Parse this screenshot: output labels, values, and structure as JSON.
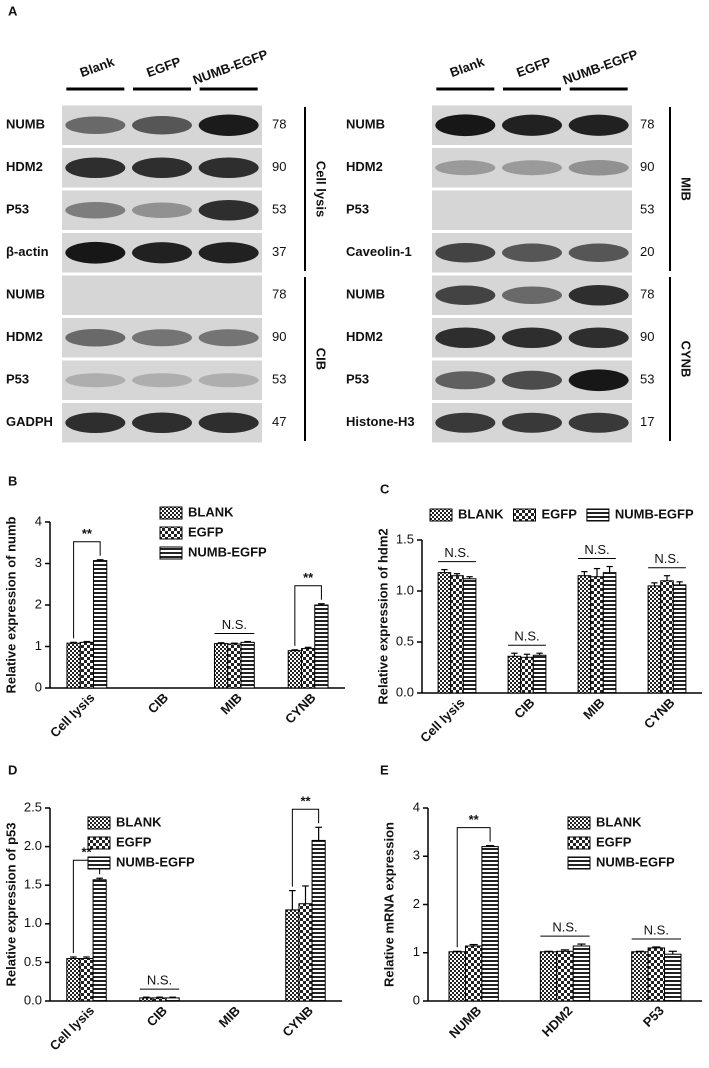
{
  "panel_a": {
    "label": "A",
    "lanes": [
      "Blank",
      "EGFP",
      "NUMB-EGFP"
    ],
    "blots": [
      {
        "groups": [
          {
            "name": "Cell lysis",
            "rows": [
              {
                "protein": "NUMB",
                "kda": 78
              },
              {
                "protein": "HDM2",
                "kda": 90
              },
              {
                "protein": "P53",
                "kda": 53
              },
              {
                "protein": "β-actin",
                "kda": 37
              }
            ]
          },
          {
            "name": "CIB",
            "rows": [
              {
                "protein": "NUMB",
                "kda": 78
              },
              {
                "protein": "HDM2",
                "kda": 90
              },
              {
                "protein": "P53",
                "kda": 53
              },
              {
                "protein": "GADPH",
                "kda": 47
              }
            ]
          }
        ]
      },
      {
        "groups": [
          {
            "name": "MIB",
            "rows": [
              {
                "protein": "NUMB",
                "kda": 78
              },
              {
                "protein": "HDM2",
                "kda": 90
              },
              {
                "protein": "P53",
                "kda": 53
              },
              {
                "protein": "Caveolin-1",
                "kda": 20
              }
            ]
          },
          {
            "name": "CYNB",
            "rows": [
              {
                "protein": "NUMB",
                "kda": 78
              },
              {
                "protein": "HDM2",
                "kda": 90
              },
              {
                "protein": "P53",
                "kda": 53
              },
              {
                "protein": "Histone-H3",
                "kda": 17
              }
            ]
          }
        ]
      }
    ]
  },
  "chart_data": [
    {
      "type": "bar",
      "label": "B",
      "y_label": "Relative expression of numb",
      "categories": [
        "Cell lysis",
        "CIB",
        "MIB",
        "CYNB"
      ],
      "ylim": [
        0,
        4
      ],
      "yticks": [
        0,
        1,
        2,
        3,
        4
      ],
      "legend": "top-right",
      "series": [
        {
          "name": "BLANK",
          "color": "#222222",
          "values": [
            1.08,
            null,
            1.07,
            0.9
          ],
          "errors": [
            0.02,
            null,
            0.02,
            0.02
          ]
        },
        {
          "name": "EGFP",
          "color": "#222222",
          "values": [
            1.1,
            null,
            1.06,
            0.95
          ],
          "errors": [
            0.02,
            null,
            0.02,
            0.03
          ]
        },
        {
          "name": "NUMB-EGFP",
          "color": "#222222",
          "values": [
            3.07,
            null,
            1.1,
            2.0
          ],
          "errors": [
            0.02,
            null,
            0.02,
            0.03
          ]
        }
      ],
      "annotations": [
        {
          "text": "**",
          "category": "Cell lysis",
          "style": "bracket"
        },
        {
          "text": "N.S.",
          "category": "MIB",
          "style": "line"
        },
        {
          "text": "**",
          "category": "CYNB",
          "style": "bracket"
        }
      ]
    },
    {
      "type": "bar",
      "label": "C",
      "y_label": "Relative expression of hdm2",
      "categories": [
        "Cell lysis",
        "CIB",
        "MIB",
        "CYNB"
      ],
      "ylim": [
        0,
        1.5
      ],
      "yticks": [
        {
          "value": 0,
          "label": "0.0"
        },
        {
          "value": 0.5,
          "label": "0.5"
        },
        {
          "value": 1,
          "label": "1.0"
        },
        {
          "value": 1.5,
          "label": "1.5"
        }
      ],
      "legend": "top",
      "series": [
        {
          "name": "BLANK",
          "color": "#222222",
          "values": [
            1.18,
            0.36,
            1.15,
            1.05
          ],
          "errors": [
            0.03,
            0.03,
            0.04,
            0.03
          ]
        },
        {
          "name": "EGFP",
          "color": "#222222",
          "values": [
            1.15,
            0.35,
            1.14,
            1.1
          ],
          "errors": [
            0.02,
            0.03,
            0.08,
            0.05
          ]
        },
        {
          "name": "NUMB-EGFP",
          "color": "#222222",
          "values": [
            1.12,
            0.37,
            1.18,
            1.06
          ],
          "errors": [
            0.02,
            0.02,
            0.06,
            0.03
          ]
        }
      ],
      "annotations": [
        {
          "text": "N.S.",
          "category": "Cell lysis",
          "style": "line"
        },
        {
          "text": "N.S.",
          "category": "CIB",
          "style": "line"
        },
        {
          "text": "N.S.",
          "category": "MIB",
          "style": "line"
        },
        {
          "text": "N.S.",
          "category": "CYNB",
          "style": "line"
        }
      ]
    },
    {
      "type": "bar",
      "label": "D",
      "y_label": "Relative expression of p53",
      "categories": [
        "Cell lysis",
        "CIB",
        "MIB",
        "CYNB"
      ],
      "ylim": [
        0,
        2.5
      ],
      "yticks": [
        {
          "value": 0,
          "label": "0.0"
        },
        {
          "value": 0.5,
          "label": "0.5"
        },
        {
          "value": 1,
          "label": "1.0"
        },
        {
          "value": 1.5,
          "label": "1.5"
        },
        {
          "value": 2,
          "label": "2.0"
        },
        {
          "value": 2.5,
          "label": "2.5"
        }
      ],
      "legend": "top-left",
      "series": [
        {
          "name": "BLANK",
          "color": "#222222",
          "values": [
            0.55,
            0.04,
            null,
            1.18
          ],
          "errors": [
            0.02,
            0.01,
            null,
            0.25
          ]
        },
        {
          "name": "EGFP",
          "color": "#222222",
          "values": [
            0.55,
            0.04,
            null,
            1.26
          ],
          "errors": [
            0.02,
            0.01,
            null,
            0.23
          ]
        },
        {
          "name": "NUMB-EGFP",
          "color": "#222222",
          "values": [
            1.57,
            0.04,
            null,
            2.08
          ],
          "errors": [
            0.02,
            0.01,
            null,
            0.17
          ]
        }
      ],
      "annotations": [
        {
          "text": "**",
          "category": "Cell lysis",
          "style": "bracket"
        },
        {
          "text": "N.S.",
          "category": "CIB",
          "style": "line"
        },
        {
          "text": "**",
          "category": "CYNB",
          "style": "bracket"
        }
      ]
    },
    {
      "type": "bar",
      "label": "E",
      "y_label": "Relative mRNA expression",
      "categories": [
        "NUMB",
        "HDM2",
        "P53"
      ],
      "ylim": [
        0,
        4
      ],
      "yticks": [
        0,
        1,
        2,
        3,
        4
      ],
      "legend": "top-right",
      "series": [
        {
          "name": "BLANK",
          "color": "#222222",
          "values": [
            1.02,
            1.02,
            1.02
          ],
          "errors": [
            0.01,
            0.01,
            0.01
          ]
        },
        {
          "name": "EGFP",
          "color": "#222222",
          "values": [
            1.14,
            1.03,
            1.1
          ],
          "errors": [
            0.03,
            0.03,
            0.02
          ]
        },
        {
          "name": "NUMB-EGFP",
          "color": "#222222",
          "values": [
            3.2,
            1.14,
            0.97
          ],
          "errors": [
            0.02,
            0.04,
            0.06
          ]
        }
      ],
      "annotations": [
        {
          "text": "**",
          "category": "NUMB",
          "style": "bracket"
        },
        {
          "text": "N.S.",
          "category": "HDM2",
          "style": "line"
        },
        {
          "text": "N.S.",
          "category": "P53",
          "style": "line"
        }
      ]
    }
  ]
}
